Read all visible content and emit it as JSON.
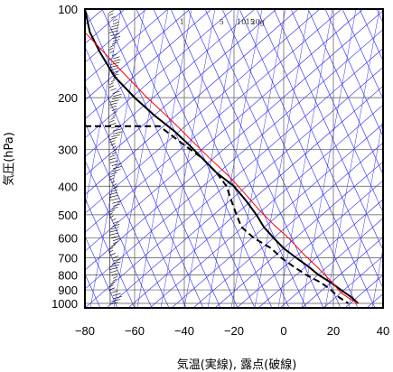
{
  "chart_data": {
    "type": "line",
    "title": "",
    "xlabel": "気温(実線), 露点(破線)",
    "ylabel": "気圧(hPa)",
    "xlim": [
      -80,
      40
    ],
    "ylim": [
      1040,
      100
    ],
    "y_scale": "log",
    "grid": true,
    "x_ticks": [
      "−80",
      "−60",
      "−40",
      "−20",
      "0",
      "20",
      "40"
    ],
    "y_ticks": [
      {
        "value": 100,
        "label": "100"
      },
      {
        "value": 200,
        "label": "200"
      },
      {
        "value": 300,
        "label": "300"
      },
      {
        "value": 400,
        "label": "400"
      },
      {
        "value": 500,
        "label": "500"
      },
      {
        "value": 600,
        "label": "600"
      },
      {
        "value": 700,
        "label": "700"
      },
      {
        "value": 800,
        "label": "800"
      },
      {
        "value": 900,
        "label": "900"
      },
      {
        "value": 1000,
        "label": "1000"
      }
    ],
    "mixing_ratio_labels": [
      {
        "text": "1",
        "t": -41
      },
      {
        "text": "5",
        "t": -25
      },
      {
        "text": "10",
        "t": -17
      },
      {
        "text": "15",
        "t": -13.5
      },
      {
        "text": "20g",
        "t": -10.5
      }
    ],
    "series": [
      {
        "style": "solid",
        "color": "#000000",
        "points": [
          [
            -80,
            100
          ],
          [
            -78,
            120
          ],
          [
            -74,
            140
          ],
          [
            -68,
            170
          ],
          [
            -60,
            200
          ],
          [
            -52,
            230
          ],
          [
            -44,
            260
          ],
          [
            -38,
            290
          ],
          [
            -33,
            320
          ],
          [
            -27,
            360
          ],
          [
            -20,
            400
          ],
          [
            -15,
            450
          ],
          [
            -11,
            500
          ],
          [
            -8,
            550
          ],
          [
            -4,
            600
          ],
          [
            0,
            650
          ],
          [
            5,
            700
          ],
          [
            10,
            750
          ],
          [
            14,
            800
          ],
          [
            19,
            850
          ],
          [
            23,
            900
          ],
          [
            27,
            950
          ],
          [
            30,
            1000
          ]
        ]
      },
      {
        "style": "dashed",
        "color": "#000000",
        "points": [
          [
            -80,
            250
          ],
          [
            -50,
            250
          ],
          [
            -40,
            290
          ],
          [
            -33,
            320
          ],
          [
            -27,
            360
          ],
          [
            -23,
            400
          ],
          [
            -21,
            450
          ],
          [
            -19,
            500
          ],
          [
            -17,
            550
          ],
          [
            -12,
            600
          ],
          [
            -5,
            650
          ],
          [
            -1,
            700
          ],
          [
            4,
            750
          ],
          [
            9,
            800
          ],
          [
            15,
            850
          ],
          [
            19,
            900
          ],
          [
            22,
            950
          ],
          [
            26,
            1000
          ]
        ]
      },
      {
        "style": "solid",
        "color": "#ff0000",
        "points": [
          [
            -80,
            120
          ],
          [
            -66,
            160
          ],
          [
            -55,
            200
          ],
          [
            -45,
            240
          ],
          [
            -37,
            280
          ],
          [
            -30,
            320
          ],
          [
            -22,
            370
          ],
          [
            -16,
            420
          ],
          [
            -10,
            480
          ],
          [
            -4,
            540
          ],
          [
            2,
            600
          ],
          [
            8,
            680
          ],
          [
            14,
            760
          ],
          [
            19,
            840
          ],
          [
            23,
            920
          ],
          [
            27,
            970
          ],
          [
            30,
            1000
          ]
        ]
      }
    ]
  }
}
